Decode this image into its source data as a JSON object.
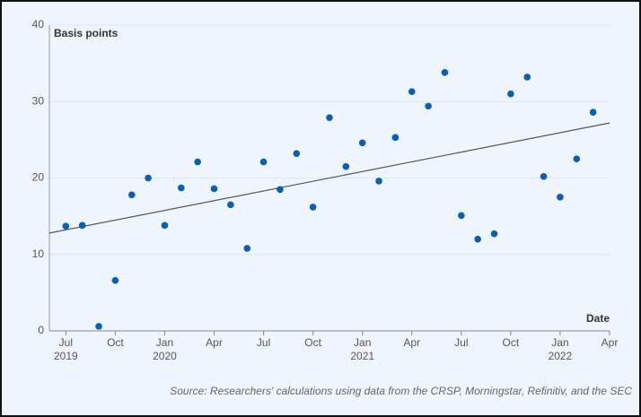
{
  "chart_data": {
    "type": "scatter",
    "y_label": "Basis points",
    "x_label": "Date",
    "source": "Source: Researchers' calculations using data from the CRSP, Morningstar, Refinitiv, and the SEC",
    "color": "#0b5fb3",
    "grid": true,
    "x": [
      "2019-07",
      "2019-08",
      "2019-09",
      "2019-10",
      "2019-11",
      "2019-12",
      "2020-01",
      "2020-02",
      "2020-03",
      "2020-04",
      "2020-05",
      "2020-06",
      "2020-07",
      "2020-08",
      "2020-09",
      "2020-10",
      "2020-11",
      "2020-12",
      "2021-01",
      "2021-02",
      "2021-03",
      "2021-04",
      "2021-05",
      "2021-06",
      "2021-07",
      "2021-08",
      "2021-09",
      "2021-10",
      "2021-11",
      "2021-12",
      "2022-01",
      "2022-02",
      "2022-03"
    ],
    "values": [
      13.7,
      13.8,
      0.6,
      6.6,
      17.8,
      20.0,
      13.8,
      18.7,
      22.1,
      18.6,
      16.5,
      10.8,
      22.1,
      18.5,
      23.2,
      16.2,
      27.9,
      21.5,
      24.6,
      19.6,
      25.3,
      31.3,
      29.4,
      33.8,
      15.1,
      12.0,
      12.7,
      31.0,
      33.2,
      20.2,
      17.5,
      22.5,
      28.6
    ],
    "trendline": {
      "color": "#555555",
      "x": [
        "2019-06",
        "2022-04"
      ],
      "values": [
        12.8,
        27.2
      ]
    },
    "xlim": [
      "2019-06",
      "2022-04"
    ],
    "xticks": [
      {
        "value": "2019-07",
        "label": "Jul",
        "year": "2019"
      },
      {
        "value": "2019-10",
        "label": "Oct"
      },
      {
        "value": "2020-01",
        "label": "Jan",
        "year": "2020"
      },
      {
        "value": "2020-04",
        "label": "Apr"
      },
      {
        "value": "2020-07",
        "label": "Jul"
      },
      {
        "value": "2020-10",
        "label": "Oct"
      },
      {
        "value": "2021-01",
        "label": "Jan",
        "year": "2021"
      },
      {
        "value": "2021-04",
        "label": "Apr"
      },
      {
        "value": "2021-07",
        "label": "Jul"
      },
      {
        "value": "2021-10",
        "label": "Oct"
      },
      {
        "value": "2022-01",
        "label": "Jan",
        "year": "2022"
      },
      {
        "value": "2022-04",
        "label": "Apr"
      }
    ],
    "ylim": [
      0,
      40
    ],
    "yticks": [
      0,
      10,
      20,
      30,
      40
    ]
  }
}
